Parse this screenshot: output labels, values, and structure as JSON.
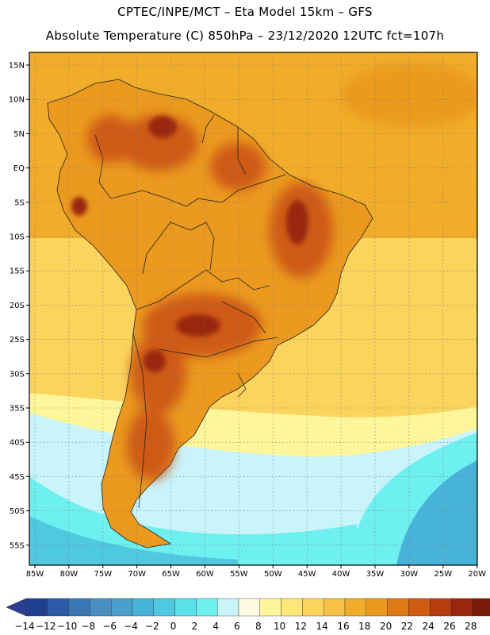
{
  "header": {
    "line1": "CPTEC/INPE/MCT –  Eta Model 15km – GFS",
    "line2": "Absolute Temperature (C) 850hPa – 23/12/2020 12UTC fct=107h"
  },
  "axes": {
    "lat_labels": [
      "15N",
      "10N",
      "5N",
      "EQ",
      "5S",
      "10S",
      "15S",
      "20S",
      "25S",
      "30S",
      "35S",
      "40S",
      "45S",
      "50S",
      "55S"
    ],
    "lon_labels": [
      "85W",
      "80W",
      "75W",
      "70W",
      "65W",
      "60W",
      "55W",
      "50W",
      "45W",
      "40W",
      "35W",
      "30W",
      "25W",
      "20W"
    ]
  },
  "colorbar": {
    "labels": [
      "-14",
      "-12",
      "-10",
      "-8",
      "-6",
      "-4",
      "-2",
      "0",
      "2",
      "4",
      "6",
      "8",
      "10",
      "12",
      "14",
      "16",
      "18",
      "20",
      "22",
      "24",
      "26",
      "28"
    ],
    "colors": [
      "#1f3f91",
      "#2b5ba6",
      "#3a77b5",
      "#4a8fc4",
      "#4aa0cc",
      "#48b3d8",
      "#4fc9e0",
      "#5bdfe8",
      "#6ef0f0",
      "#c8f4fa",
      "#fffbe0",
      "#fff59a",
      "#fde67a",
      "#fbd45e",
      "#f6c146",
      "#f1ad2a",
      "#eb9a1f",
      "#e07a16",
      "#cf5a12",
      "#b73d0e",
      "#9a270b",
      "#7a1a0a"
    ],
    "under_color": "#2a3d8f",
    "over_color": "#7a0a22"
  },
  "palette": {
    "ocean_north": "#f1ad2a",
    "ocean_mid": "#fbd45e",
    "ocean_cool": "#fff59a",
    "ocean_cold1": "#c8f4fa",
    "ocean_cold2": "#6ef0f0",
    "ocean_cold3": "#4fc9e0",
    "ocean_cold4": "#48b3d8",
    "land_warm": "#eb9a1f",
    "land_hot": "#e07a16",
    "land_hotter": "#cf5a12",
    "land_max": "#9a270b",
    "border": "#222222"
  }
}
